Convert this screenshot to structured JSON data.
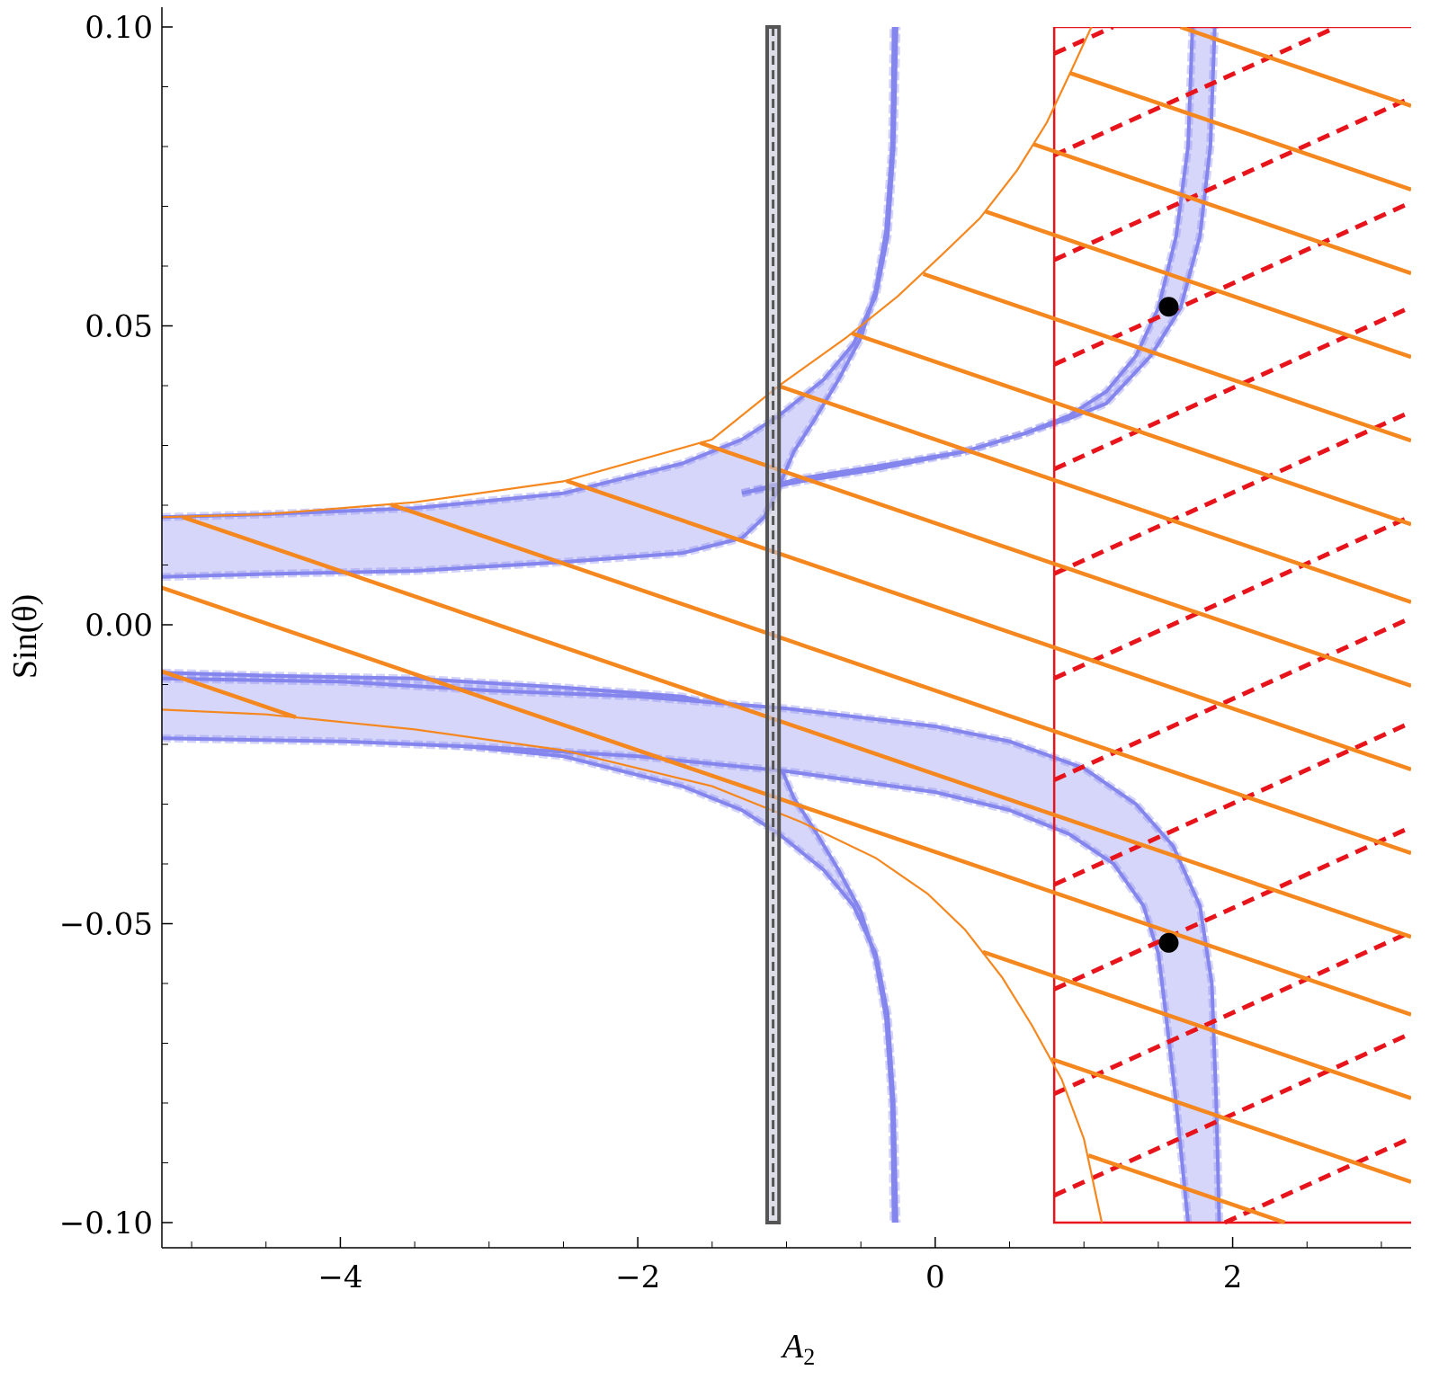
{
  "chart_data": {
    "type": "line",
    "title": "",
    "xlabel": "A",
    "xlabel_subscript": "2",
    "ylabel": "Sin(θ)",
    "xlim": [
      -5.2,
      3.2
    ],
    "ylim": [
      -0.105,
      0.1
    ],
    "grid": false,
    "legend": "none",
    "x_ticks": [
      {
        "value": -4,
        "label": "−4"
      },
      {
        "value": -2,
        "label": "−2"
      },
      {
        "value": 0,
        "label": "0"
      },
      {
        "value": 2,
        "label": "2"
      }
    ],
    "y_ticks": [
      {
        "value": 0.1,
        "label": "0.10"
      },
      {
        "value": 0.05,
        "label": "0.05"
      },
      {
        "value": 0.0,
        "label": "0.00"
      },
      {
        "value": -0.05,
        "label": "−0.05"
      },
      {
        "value": -0.1,
        "label": "−0.10"
      }
    ],
    "colors": {
      "band_fill": "#d6d6fa",
      "band_edge": "#8585ee",
      "orange": "#f5871f",
      "red": "#e8141c",
      "gray_bar": "#555555",
      "marker": "#000000"
    },
    "series": [
      {
        "kind": "band",
        "outer": [
          [
            -5.2,
            0.018
          ],
          [
            -4.5,
            0.0185
          ],
          [
            -3.5,
            0.0195
          ],
          [
            -2.5,
            0.022
          ],
          [
            -1.7,
            0.027
          ],
          [
            -1.3,
            0.031
          ],
          [
            -1.05,
            0.035
          ],
          [
            -0.75,
            0.041
          ],
          [
            -0.55,
            0.047
          ],
          [
            -0.4,
            0.055
          ],
          [
            -0.32,
            0.065
          ],
          [
            -0.28,
            0.08
          ],
          [
            -0.26,
            0.1
          ]
        ],
        "inner": [
          [
            -5.2,
            0.008
          ],
          [
            -4.5,
            0.0085
          ],
          [
            -3.5,
            0.009
          ],
          [
            -2.5,
            0.0105
          ],
          [
            -1.7,
            0.012
          ],
          [
            -1.3,
            0.0145
          ],
          [
            -1.15,
            0.018
          ],
          [
            -1.07,
            0.022
          ],
          [
            -0.95,
            0.029
          ],
          [
            -0.82,
            0.034
          ],
          [
            -0.65,
            0.041
          ],
          [
            -0.5,
            0.048
          ],
          [
            -0.4,
            0.056
          ],
          [
            -0.33,
            0.066
          ],
          [
            -0.29,
            0.08
          ],
          [
            -0.28,
            0.1
          ]
        ]
      },
      {
        "kind": "band",
        "outer": [
          [
            -5.2,
            -0.018
          ],
          [
            -4.5,
            -0.0185
          ],
          [
            -3.5,
            -0.0195
          ],
          [
            -2.5,
            -0.022
          ],
          [
            -1.7,
            -0.027
          ],
          [
            -1.3,
            -0.031
          ],
          [
            -1.05,
            -0.035
          ],
          [
            -0.75,
            -0.041
          ],
          [
            -0.55,
            -0.047
          ],
          [
            -0.4,
            -0.055
          ],
          [
            -0.32,
            -0.065
          ],
          [
            -0.28,
            -0.08
          ],
          [
            -0.26,
            -0.1
          ]
        ],
        "inner": [
          [
            -5.2,
            -0.008
          ],
          [
            -4.5,
            -0.0085
          ],
          [
            -3.5,
            -0.009
          ],
          [
            -2.5,
            -0.0105
          ],
          [
            -1.7,
            -0.012
          ],
          [
            -1.3,
            -0.0145
          ],
          [
            -1.15,
            -0.018
          ],
          [
            -1.07,
            -0.022
          ],
          [
            -0.95,
            -0.029
          ],
          [
            -0.82,
            -0.034
          ],
          [
            -0.65,
            -0.041
          ],
          [
            -0.5,
            -0.048
          ],
          [
            -0.4,
            -0.056
          ],
          [
            -0.33,
            -0.066
          ],
          [
            -0.29,
            -0.08
          ],
          [
            -0.28,
            -0.1
          ]
        ]
      },
      {
        "kind": "band",
        "outer": [
          [
            -1.3,
            0.022
          ],
          [
            -0.9,
            0.024
          ],
          [
            -0.4,
            0.026
          ],
          [
            0.2,
            0.029
          ],
          [
            0.6,
            0.032
          ],
          [
            0.9,
            0.035
          ],
          [
            1.15,
            0.039
          ],
          [
            1.35,
            0.045
          ],
          [
            1.5,
            0.053
          ],
          [
            1.62,
            0.065
          ],
          [
            1.7,
            0.08
          ],
          [
            1.73,
            0.1
          ]
        ],
        "inner": [
          [
            -1.3,
            0.022
          ],
          [
            -0.9,
            0.0245
          ],
          [
            -0.4,
            0.0265
          ],
          [
            0.2,
            0.029
          ],
          [
            0.6,
            0.032
          ],
          [
            0.9,
            0.0345
          ],
          [
            1.15,
            0.037
          ],
          [
            1.45,
            0.045
          ],
          [
            1.65,
            0.053
          ],
          [
            1.78,
            0.065
          ],
          [
            1.85,
            0.08
          ],
          [
            1.88,
            0.1
          ]
        ]
      },
      {
        "kind": "band",
        "outer": [
          [
            -5.2,
            -0.009
          ],
          [
            -4,
            -0.0095
          ],
          [
            -3,
            -0.011
          ],
          [
            -2,
            -0.012
          ],
          [
            -1,
            -0.014
          ],
          [
            0,
            -0.017
          ],
          [
            0.5,
            -0.0195
          ],
          [
            1.0,
            -0.024
          ],
          [
            1.35,
            -0.03
          ],
          [
            1.6,
            -0.037
          ],
          [
            1.78,
            -0.047
          ],
          [
            1.86,
            -0.06
          ],
          [
            1.89,
            -0.08
          ],
          [
            1.91,
            -0.1
          ]
        ],
        "inner": [
          [
            -5.2,
            -0.019
          ],
          [
            -4,
            -0.0195
          ],
          [
            -3,
            -0.0205
          ],
          [
            -2,
            -0.022
          ],
          [
            -1,
            -0.0245
          ],
          [
            0,
            -0.028
          ],
          [
            0.5,
            -0.031
          ],
          [
            0.9,
            -0.035
          ],
          [
            1.2,
            -0.04
          ],
          [
            1.4,
            -0.047
          ],
          [
            1.5,
            -0.055
          ],
          [
            1.55,
            -0.065
          ],
          [
            1.62,
            -0.08
          ],
          [
            1.7,
            -0.1
          ]
        ]
      },
      {
        "kind": "line",
        "name": "",
        "points": [
          [
            -5.2,
            0.018
          ],
          [
            -4.5,
            0.0185
          ],
          [
            -3.5,
            0.0205
          ],
          [
            -2.5,
            0.024
          ],
          [
            -1.5,
            0.031
          ],
          [
            -1.05,
            0.04
          ],
          [
            -0.6,
            0.048
          ],
          [
            -0.25,
            0.055
          ],
          [
            0.05,
            0.062
          ],
          [
            0.3,
            0.068
          ],
          [
            0.55,
            0.076
          ],
          [
            0.75,
            0.084
          ],
          [
            0.92,
            0.093
          ],
          [
            1.05,
            0.1
          ]
        ]
      },
      {
        "kind": "line",
        "name": "",
        "points": [
          [
            -5.2,
            -0.0142
          ],
          [
            -4.5,
            -0.015
          ],
          [
            -3.5,
            -0.0175
          ],
          [
            -2.5,
            -0.021
          ],
          [
            -1.5,
            -0.027
          ],
          [
            -0.9,
            -0.033
          ],
          [
            -0.4,
            -0.039
          ],
          [
            -0.05,
            -0.045
          ],
          [
            0.2,
            -0.051
          ],
          [
            0.45,
            -0.059
          ],
          [
            0.65,
            -0.067
          ],
          [
            0.85,
            -0.076
          ],
          [
            1.0,
            -0.086
          ],
          [
            1.12,
            -0.1
          ]
        ]
      },
      {
        "kind": "vertical_bar",
        "x_range": [
          -1.13,
          -1.05
        ],
        "y_range": [
          -0.1,
          0.1
        ]
      },
      {
        "kind": "rectangle",
        "x_range": [
          0.8,
          3.2
        ],
        "y_range": [
          -0.1,
          0.1
        ]
      }
    ],
    "hatching": {
      "orange_slope": -0.0085,
      "orange_intercepts": [
        0.158,
        0.143,
        0.129,
        0.114,
        0.1,
        0.086,
        0.072,
        0.058,
        0.044,
        0.031,
        0.017,
        0.003,
        -0.011,
        -0.025,
        -0.038,
        -0.052,
        -0.066,
        -0.08,
        -0.094,
        -0.108
      ],
      "red_slope": 0.0113,
      "red_intercepts": [
        0.0865,
        0.0695,
        0.052,
        0.0345,
        0.017,
        -0.0005,
        -0.018,
        -0.035,
        -0.0525,
        -0.07,
        -0.0875,
        -0.1045,
        -0.122,
        -0.1395,
        -0.157,
        -0.1745,
        -0.192,
        -0.209,
        -0.2265,
        -0.2435
      ]
    },
    "points": [
      {
        "x": 1.57,
        "y": 0.0532
      },
      {
        "x": 1.57,
        "y": -0.0532
      }
    ]
  }
}
